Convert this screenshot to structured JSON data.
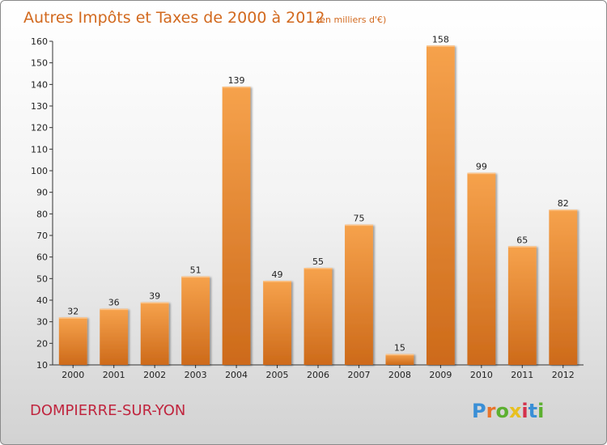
{
  "chart_data": {
    "type": "bar",
    "title": "Autres Impôts et Taxes de 2000 à 2012",
    "subtitle": "(en milliers d'€)",
    "categories": [
      "2000",
      "2001",
      "2002",
      "2003",
      "2004",
      "2005",
      "2006",
      "2007",
      "2008",
      "2009",
      "2010",
      "2011",
      "2012"
    ],
    "values": [
      32,
      36,
      39,
      51,
      139,
      49,
      55,
      75,
      15,
      158,
      99,
      65,
      82
    ],
    "ylim": [
      10,
      160
    ],
    "yticks": [
      10,
      20,
      30,
      40,
      50,
      60,
      70,
      80,
      90,
      100,
      110,
      120,
      130,
      140,
      150,
      160
    ],
    "grid": false,
    "bar_color": "#f0903a",
    "xlabel": "",
    "ylabel": ""
  },
  "footer": {
    "town": "DOMPIERRE-SUR-YON",
    "logo": "Proxiti",
    "logo_colors": [
      "#3a8fd6",
      "#e8742a",
      "#5cb030",
      "#e8c020",
      "#d4304a",
      "#3a8fd6",
      "#5cb030"
    ]
  }
}
